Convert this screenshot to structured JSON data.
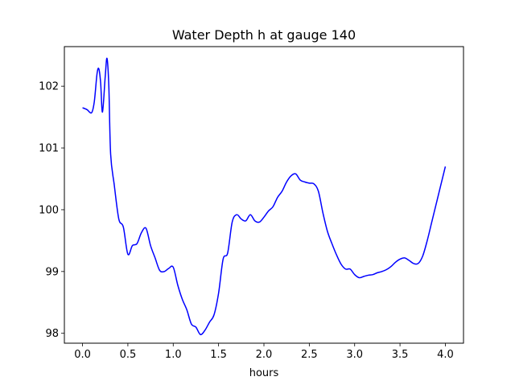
{
  "chart_data": {
    "type": "line",
    "title": "Water Depth h at gauge 140",
    "xlabel": "hours",
    "ylabel": "",
    "xlim": [
      -0.2,
      4.2
    ],
    "ylim": [
      97.84,
      102.64
    ],
    "xticks": [
      0.0,
      0.5,
      1.0,
      1.5,
      2.0,
      2.5,
      3.0,
      3.5,
      4.0
    ],
    "xtick_labels": [
      "0.0",
      "0.5",
      "1.0",
      "1.5",
      "2.0",
      "2.5",
      "3.0",
      "3.5",
      "4.0"
    ],
    "yticks": [
      98,
      99,
      100,
      101,
      102
    ],
    "ytick_labels": [
      "98",
      "99",
      "100",
      "101",
      "102"
    ],
    "grid": false,
    "legend": null,
    "series": [
      {
        "color": "#0000ff",
        "x": [
          0.0,
          0.05,
          0.1,
          0.13,
          0.16,
          0.18,
          0.2,
          0.22,
          0.25,
          0.27,
          0.29,
          0.31,
          0.35,
          0.4,
          0.45,
          0.5,
          0.55,
          0.6,
          0.65,
          0.7,
          0.75,
          0.8,
          0.85,
          0.9,
          0.95,
          1.0,
          1.05,
          1.1,
          1.15,
          1.2,
          1.25,
          1.3,
          1.35,
          1.4,
          1.45,
          1.5,
          1.55,
          1.6,
          1.65,
          1.7,
          1.75,
          1.8,
          1.85,
          1.9,
          1.95,
          2.0,
          2.05,
          2.1,
          2.15,
          2.2,
          2.25,
          2.3,
          2.35,
          2.4,
          2.45,
          2.5,
          2.55,
          2.6,
          2.65,
          2.7,
          2.75,
          2.8,
          2.85,
          2.9,
          2.95,
          3.0,
          3.05,
          3.1,
          3.15,
          3.2,
          3.25,
          3.3,
          3.35,
          3.4,
          3.45,
          3.5,
          3.55,
          3.6,
          3.65,
          3.7,
          3.75,
          3.8,
          3.85,
          3.9,
          3.95,
          4.0
        ],
        "y": [
          101.65,
          101.62,
          101.57,
          101.75,
          102.2,
          102.28,
          102.05,
          101.58,
          102.15,
          102.45,
          102.0,
          100.9,
          100.4,
          99.85,
          99.72,
          99.28,
          99.42,
          99.45,
          99.63,
          99.7,
          99.42,
          99.22,
          99.02,
          99.0,
          99.05,
          99.07,
          98.78,
          98.55,
          98.38,
          98.15,
          98.1,
          97.98,
          98.05,
          98.18,
          98.3,
          98.65,
          99.2,
          99.3,
          99.8,
          99.92,
          99.85,
          99.82,
          99.92,
          99.82,
          99.8,
          99.88,
          99.98,
          100.05,
          100.2,
          100.3,
          100.45,
          100.55,
          100.58,
          100.48,
          100.45,
          100.43,
          100.42,
          100.3,
          99.95,
          99.65,
          99.45,
          99.27,
          99.12,
          99.04,
          99.04,
          98.95,
          98.9,
          98.92,
          98.94,
          98.95,
          98.98,
          99.0,
          99.03,
          99.08,
          99.15,
          99.2,
          99.22,
          99.18,
          99.13,
          99.13,
          99.25,
          99.5,
          99.8,
          100.1,
          100.4,
          100.7
        ]
      }
    ]
  }
}
